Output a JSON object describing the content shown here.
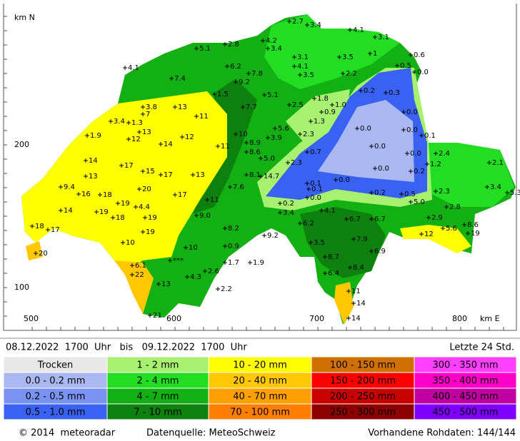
{
  "axis": {
    "north_label": "km N",
    "east_label": "km E",
    "y_labels": [
      "200",
      "100"
    ],
    "x_labels": [
      "500",
      "600",
      "700",
      "800"
    ]
  },
  "header": {
    "period": "08.12.2022  1700  Uhr   bis   09.12.2022  1700  Uhr",
    "span": "Letzte 24 Std."
  },
  "legend": [
    {
      "label": "Trocken",
      "color": "#e8e8e8"
    },
    {
      "label": "0.0 - 0.2 mm",
      "color": "#aab8f2"
    },
    {
      "label": "0.2 - 0.5 mm",
      "color": "#7a92f2"
    },
    {
      "label": "0.5 - 1.0 mm",
      "color": "#3a62f2"
    },
    {
      "label": "1 - 2 mm",
      "color": "#a8f070"
    },
    {
      "label": "2 - 4 mm",
      "color": "#22dd22"
    },
    {
      "label": "4 - 7 mm",
      "color": "#12b012"
    },
    {
      "label": "7 - 10 mm",
      "color": "#0e800e"
    },
    {
      "label": "10 - 20 mm",
      "color": "#ffff00"
    },
    {
      "label": "20 - 40 mm",
      "color": "#ffc800"
    },
    {
      "label": "40 - 70 mm",
      "color": "#ffa000"
    },
    {
      "label": "70 - 100 mm",
      "color": "#ff8000"
    },
    {
      "label": "100 - 150 mm",
      "color": "#d07000"
    },
    {
      "label": "150 - 200 mm",
      "color": "#ff0000"
    },
    {
      "label": "200 - 250 mm",
      "color": "#c80000"
    },
    {
      "label": "250 - 300 mm",
      "color": "#8c0000"
    },
    {
      "label": "300 - 350 mm",
      "color": "#ff40ff"
    },
    {
      "label": "350 - 400 mm",
      "color": "#ff00c8"
    },
    {
      "label": "400 - 450 mm",
      "color": "#c000a0"
    },
    {
      "label": "450 - 500 mm",
      "color": "#8000ff"
    }
  ],
  "footer": {
    "copyright": "© 2014  meteoradar",
    "source": "Datenquelle: MeteoSchweiz",
    "raw_data": "Vorhandene Rohdaten: 144/144"
  },
  "stations": [
    "2.7",
    "3.4",
    "4.1",
    "3.1",
    "4.2",
    "3.4",
    "2.8",
    "5.1",
    "4.1",
    "6.2",
    "7.8",
    "9.2",
    "3.1",
    "4.1",
    "3.5",
    "3.5",
    "1",
    "0.6",
    "0.5",
    "0.0",
    "2.2",
    "7.4",
    "5.1",
    "1.8",
    "0.2",
    "0.3",
    "1.0",
    "0.9",
    "1.3",
    "2.5",
    "7.7",
    "1.5",
    "13",
    "11",
    "3.8",
    "7",
    "3.4",
    "1.3",
    "13",
    "12",
    "12",
    "14",
    "1.9",
    "0.0",
    "0.0",
    "0.0",
    "0.1",
    "5.6",
    "2.3",
    "3.9",
    "10",
    "8.9",
    "11",
    "8.6",
    "5.0",
    "0.7",
    "0.0",
    "0.0",
    "2.4",
    "1.2",
    "2.1",
    "0.2",
    "0.0",
    "2.3",
    "14",
    "17",
    "15",
    "17",
    "13",
    "13",
    "8.1",
    "14.7",
    "0.0",
    "0.1",
    "0.1",
    "0.0",
    "9.4",
    "18",
    "20",
    "17",
    "11",
    "7.6",
    "2.3",
    "3.4",
    "5.3",
    "0.2",
    "0.5",
    "5.0",
    "19",
    "4.4",
    "16",
    "14",
    "19",
    "18",
    "19",
    "9.0",
    "0.2",
    "3.4",
    "4.1",
    "6.7",
    "6.7",
    "2.9",
    "2.8",
    "8.6",
    "18",
    "17",
    "19",
    "8.2",
    "6.2",
    "9.2",
    "12",
    "5.6",
    "19",
    "10",
    "7.9",
    "3.5",
    "10",
    "0.9",
    "20",
    "8.7",
    "6.9",
    "6.1",
    "1.7",
    "1.9",
    "***",
    "8.4",
    "22",
    "4.3",
    "2.6",
    "6.4",
    "13",
    "2.2",
    "11",
    "14",
    "21",
    "14"
  ]
}
